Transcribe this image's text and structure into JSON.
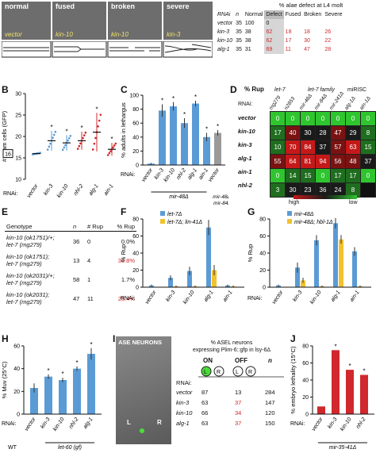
{
  "panels": {
    "A": {
      "label": "A",
      "images": [
        {
          "title": "normal",
          "rnai": "vector"
        },
        {
          "title": "fused",
          "rnai": "kin-10"
        },
        {
          "title": "broken",
          "rnai": "kin-10"
        },
        {
          "title": "severe",
          "rnai": "kin-3"
        }
      ],
      "table_title": "% alae defect at L4 molt",
      "headers": [
        "RNAi",
        "n",
        "Normal",
        "Defect",
        "Fused",
        "Broken",
        "Severe"
      ],
      "rows": [
        [
          "vector",
          "35",
          "100",
          "0",
          "",
          "",
          ""
        ],
        [
          "kin-3",
          "35",
          "38",
          "62",
          "18",
          "18",
          "26"
        ],
        [
          "kin-10",
          "35",
          "38",
          "62",
          "17",
          "30",
          "22"
        ],
        [
          "alg-1",
          "35",
          "31",
          "69",
          "11",
          "47",
          "28"
        ]
      ]
    },
    "B": {
      "label": "B",
      "ylabel": "# seam cells (GFP)",
      "yticks": [
        "10",
        "15",
        "20",
        "25",
        "30"
      ],
      "marker16": "16",
      "xlabel_prefix": "RNAi:",
      "categories": [
        "vector",
        "kin-3",
        "kin-10",
        "nhl-2",
        "alg-1",
        "ain-1"
      ]
    },
    "C": {
      "label": "C",
      "ylabel": "% adults in lethargus",
      "yticks": [
        "0",
        "20",
        "40",
        "60",
        "80",
        "100"
      ],
      "xlabel_prefix": "RNAi:",
      "categories": [
        "vector",
        "kin-3",
        "kin-10",
        "nhl-2",
        "alg-1",
        "ain-1",
        "vector"
      ],
      "group1": "mir-48Δ",
      "group2": "mir-48Δ; mir-84Δ"
    },
    "D": {
      "label": "D",
      "title": "% Rup",
      "groups": [
        "let-7",
        "let-7 family",
        "miRISC"
      ],
      "columns": [
        "mg279",
        "n2853",
        "mir-48Δ",
        "mir-84Δ",
        "mir-241Δ",
        "alg-1Δ",
        "ain-1Δ"
      ],
      "rows": [
        {
          "name": "vector",
          "values": [
            "0",
            "0",
            "0",
            "0",
            "0",
            "0",
            "0"
          ]
        },
        {
          "name": "kin-10",
          "values": [
            "17",
            "40",
            "30",
            "28",
            "47",
            "29",
            "8"
          ]
        },
        {
          "name": "kin-3",
          "values": [
            "10",
            "70",
            "84",
            "37",
            "57",
            "63",
            "15"
          ]
        },
        {
          "name": "alg-1",
          "values": [
            "55",
            "64",
            "81",
            "94",
            "56",
            "48",
            "37"
          ]
        },
        {
          "name": "ain-1",
          "values": [
            "0",
            "14",
            "15",
            "0",
            "17",
            "17",
            "0"
          ]
        },
        {
          "name": "nhl-2",
          "values": [
            "3",
            "30",
            "23",
            "36",
            "24",
            "8",
            ""
          ]
        }
      ],
      "scale_high": "high",
      "scale_low": "low"
    },
    "E": {
      "label": "E",
      "headers": [
        "Genotype",
        "n",
        "# Rup",
        "% Rup"
      ],
      "rows": [
        {
          "g1": "kin-10 (ok1751)/+;",
          "g2": "let-7 (mg279)",
          "n": "36",
          "rup": "0",
          "pct": "0.0%"
        },
        {
          "g1": "kin-10 (ok1751);",
          "g2": "let-7 (mg279)",
          "n": "13",
          "rup": "4",
          "pct": "30.8%"
        },
        {
          "g1": "kin-10 (ok2031)/+;",
          "g2": "let-7 (mg279)",
          "n": "58",
          "rup": "1",
          "pct": "1.7%"
        },
        {
          "g1": "kin-10 (ok2031);",
          "g2": "let-7 (mg279)",
          "n": "47",
          "rup": "11",
          "pct": "23.4%"
        }
      ]
    },
    "H": {
      "label": "H",
      "ylabel": "% Muv (25°C)",
      "yticks": [
        "0",
        "20",
        "40",
        "60"
      ],
      "categories": [
        "vector",
        "kin-3",
        "kin-10",
        "nhl-2",
        "alg-1"
      ],
      "wt_categories": [
        "vector"
      ],
      "rnai_prefix": "RNAi:",
      "wt_label": "WT",
      "group": "let-60 (gf)"
    },
    "I": {
      "label": "I",
      "image_label": "ASE NEURONS",
      "left_mark": "L",
      "right_mark": "R",
      "title_line1": "% ASEL neurons",
      "title_line2": "expressing Plim-6::gfp in lsy-6Δ",
      "on": "ON",
      "off": "OFF",
      "n": "n",
      "rnai": "RNAi:",
      "rows": [
        [
          "vector",
          "87",
          "13",
          "284"
        ],
        [
          "kin-3",
          "63",
          "37",
          "147"
        ],
        [
          "kin-10",
          "66",
          "34",
          "120"
        ],
        [
          "alg-1",
          "63",
          "37",
          "150"
        ]
      ]
    },
    "J": {
      "label": "J",
      "ylabel": "% embryo lethality (15°C)",
      "yticks": [
        "0",
        "20",
        "40",
        "60",
        "80"
      ],
      "categories": [
        "vector",
        "kin-3",
        "kin-10",
        "nhl-2"
      ],
      "rnai_prefix": "RNAi:",
      "group": "mir-35-41Δ"
    },
    "F": {
      "label": "F",
      "ylabel": "% Rup",
      "yticks": [
        "0",
        "20",
        "40",
        "60",
        "80"
      ],
      "rnai_prefix": "RNAi:",
      "legend": [
        "let-7Δ",
        "let-7Δ; lin-41Δ"
      ]
    },
    "G": {
      "label": "G",
      "ylabel": "% Rup",
      "yticks": [
        "0",
        "20",
        "40",
        "60",
        "80"
      ],
      "rnai_prefix": "RNAi:",
      "legend": [
        "mir-48Δ",
        "mir-48Δ; hbl-1Δ"
      ]
    }
  },
  "colors": {
    "blue": "#5b9bd5",
    "gold": "#f2c12e",
    "red": "#d0282d",
    "grey": "#9a9a9a"
  },
  "chart_data": [
    {
      "type": "scatter",
      "panel": "B",
      "ylabel": "# seam cells (GFP)",
      "ylim": [
        10,
        30
      ],
      "categories": [
        "vector",
        "kin-3",
        "kin-10",
        "nhl-2",
        "alg-1",
        "ain-1"
      ],
      "values": [
        16,
        19,
        18.5,
        19,
        21,
        17
      ],
      "errors": [
        0.2,
        2.3,
        1.8,
        2.1,
        4.5,
        1.5
      ]
    },
    {
      "type": "bar",
      "panel": "C",
      "ylabel": "% adults in lethargus",
      "ylim": [
        0,
        100
      ],
      "categories": [
        "vector",
        "kin-3",
        "kin-10",
        "nhl-2",
        "alg-1",
        "ain-1",
        "vector"
      ],
      "values": [
        2,
        78,
        84,
        60,
        88,
        40,
        46
      ],
      "errors": [
        1,
        9,
        6,
        7,
        4,
        6,
        4
      ]
    },
    {
      "type": "bar",
      "panel": "F",
      "ylabel": "% Rup",
      "ylim": [
        0,
        80
      ],
      "categories": [
        "vector",
        "kin-3",
        "kin-10",
        "alg-1",
        "ain-1"
      ],
      "series": [
        {
          "name": "let-7Δ",
          "values": [
            2,
            11,
            19,
            70,
            2
          ],
          "errors": [
            1,
            3,
            5,
            9,
            1
          ]
        },
        {
          "name": "let-7Δ; lin-41Δ",
          "values": [
            0,
            1,
            1,
            20,
            1
          ],
          "errors": [
            0,
            1,
            1,
            6,
            1
          ]
        }
      ]
    },
    {
      "type": "bar",
      "panel": "G",
      "ylabel": "% Rup",
      "ylim": [
        0,
        80
      ],
      "categories": [
        "vector",
        "kin-3",
        "kin-10",
        "alg-1",
        "ain-1"
      ],
      "series": [
        {
          "name": "mir-48Δ",
          "values": [
            2,
            23,
            55,
            75,
            42
          ],
          "errors": [
            1,
            6,
            6,
            6,
            5
          ]
        },
        {
          "name": "mir-48Δ; hbl-1Δ",
          "values": [
            0,
            8,
            1,
            56,
            1
          ],
          "errors": [
            0,
            3,
            1,
            5,
            1
          ]
        }
      ]
    },
    {
      "type": "bar",
      "panel": "H",
      "ylabel": "% Muv (25°C)",
      "ylim": [
        0,
        60
      ],
      "categories": [
        "vector",
        "kin-3",
        "kin-10",
        "nhl-2",
        "alg-1"
      ],
      "values": [
        23,
        33,
        30,
        40,
        53
      ],
      "errors": [
        4,
        2,
        2,
        2,
        5
      ]
    },
    {
      "type": "bar",
      "panel": "J",
      "ylabel": "% embryo lethality (15°C)",
      "ylim": [
        0,
        80
      ],
      "categories": [
        "vector",
        "kin-3",
        "kin-10",
        "nhl-2"
      ],
      "values": [
        9,
        75,
        52,
        46
      ]
    }
  ]
}
